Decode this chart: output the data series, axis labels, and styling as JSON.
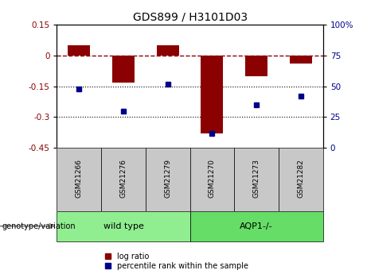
{
  "title": "GDS899 / H3101D03",
  "samples": [
    "GSM21266",
    "GSM21276",
    "GSM21279",
    "GSM21270",
    "GSM21273",
    "GSM21282"
  ],
  "log_ratios": [
    0.05,
    -0.13,
    0.05,
    -0.38,
    -0.1,
    -0.04
  ],
  "percentile_ranks": [
    48,
    30,
    52,
    12,
    35,
    42
  ],
  "bar_color": "#8B0000",
  "dot_color": "#00008B",
  "ylim_left": [
    -0.45,
    0.15
  ],
  "ylim_right": [
    0,
    100
  ],
  "yticks_left": [
    0.15,
    0,
    -0.15,
    -0.3,
    -0.45
  ],
  "yticks_right": [
    100,
    75,
    50,
    25,
    0
  ],
  "dotted_lines": [
    -0.15,
    -0.3
  ],
  "legend_items": [
    "log ratio",
    "percentile rank within the sample"
  ],
  "bar_width": 0.5,
  "group_separator_idx": 3,
  "groups": [
    {
      "label": "wild type",
      "start": 0,
      "end": 3,
      "color": "#90EE90"
    },
    {
      "label": "AQP1-/-",
      "start": 3,
      "end": 6,
      "color": "#66DD66"
    }
  ],
  "sample_box_color": "#C8C8C8",
  "genotype_label": "genotype/variation",
  "fig_width": 4.61,
  "fig_height": 3.45,
  "dpi": 100
}
